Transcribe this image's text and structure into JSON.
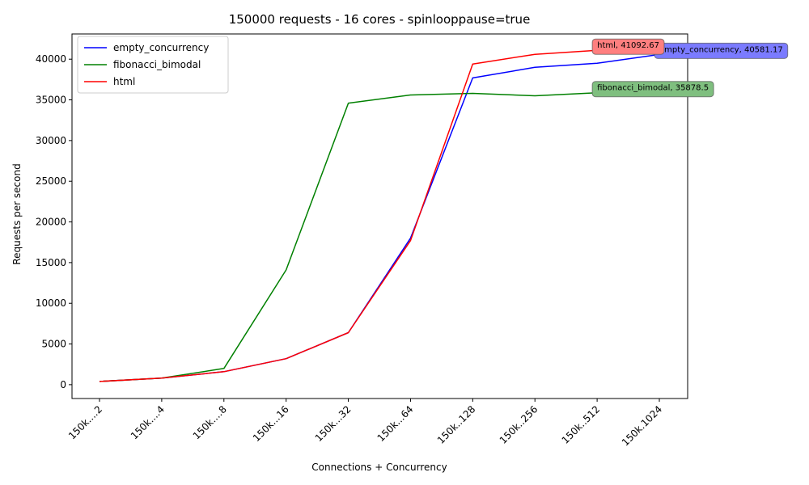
{
  "chart_data": {
    "type": "line",
    "title": "150000 requests - 16 cores - spinlooppause=true",
    "xlabel": "Connections + Concurrency",
    "ylabel": "Requests per second",
    "categories": [
      "150k....2",
      "150k....4",
      "150k....8",
      "150k...16",
      "150k...32",
      "150k...64",
      "150k..128",
      "150k..256",
      "150k..512",
      "150k.1024"
    ],
    "ylim": [
      -1700,
      43100
    ],
    "yticks": [
      0,
      5000,
      10000,
      15000,
      20000,
      25000,
      30000,
      35000,
      40000
    ],
    "legend_position": "top-left",
    "series": [
      {
        "name": "empty_concurrency",
        "color": "#0000ff",
        "values": [
          400,
          800,
          1600,
          3200,
          6400,
          18000,
          37700,
          39000,
          39500,
          40581.17
        ],
        "annotation": {
          "text": "empty_concurrency, 40581.17",
          "index": 9,
          "bg": "#7b7bff"
        }
      },
      {
        "name": "fibonacci_bimodal",
        "color": "#008000",
        "values": [
          400,
          800,
          2000,
          14100,
          34600,
          35600,
          35800,
          35500,
          35878.5,
          35500
        ],
        "annotation": {
          "text": "fibonacci_bimodal, 35878.5",
          "index": 8,
          "bg": "#7fbf7f"
        }
      },
      {
        "name": "html",
        "color": "#ff0000",
        "values": [
          400,
          800,
          1600,
          3200,
          6400,
          17700,
          39400,
          40600,
          41092.67,
          40800
        ],
        "annotation": {
          "text": "html, 41092.67",
          "index": 8,
          "bg": "#ff7f7f"
        }
      }
    ]
  }
}
